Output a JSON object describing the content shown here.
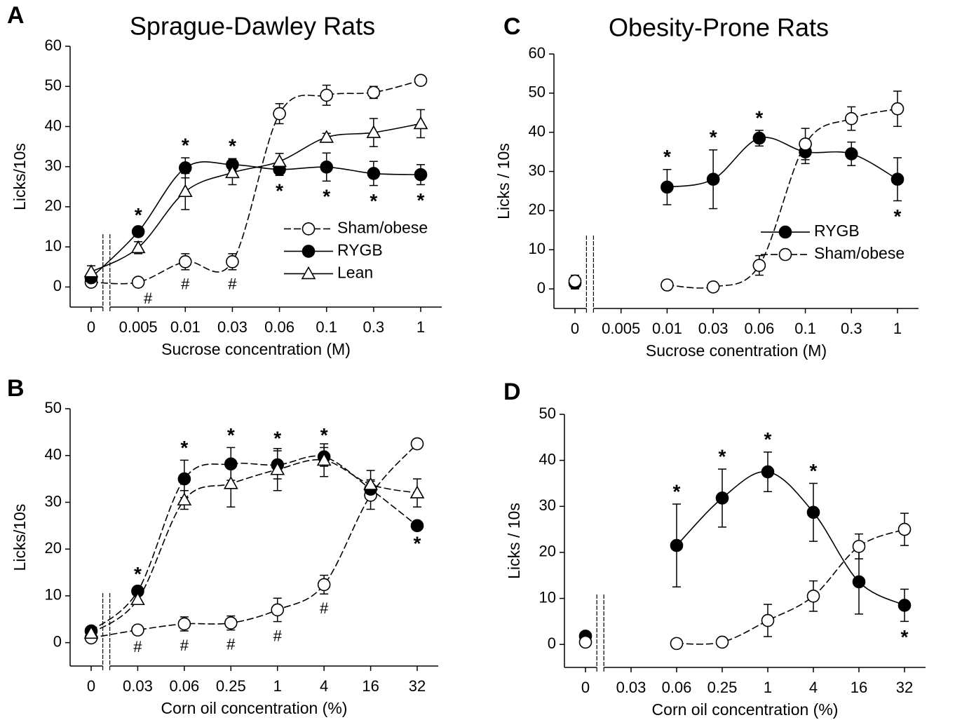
{
  "chart_data": [
    {
      "type": "line",
      "panel": "A",
      "title": "Sprague-Dawley Rats",
      "y_label": "Licks/10s",
      "x_label": "Sucrose concentration (M)",
      "categories": [
        "0",
        "0.005",
        "0.01",
        "0.03",
        "0.06",
        "0.1",
        "0.3",
        "1"
      ],
      "ylim": [
        -5,
        60
      ],
      "yticks": [
        0,
        10,
        20,
        30,
        40,
        50,
        60
      ],
      "legend": "right",
      "series": [
        {
          "name": "Sham/obese",
          "color": "#000000",
          "fill": "#ffffff",
          "marker": "circle",
          "dashed": true,
          "values": [
            1.2,
            1.2,
            6.3,
            6.3,
            43.2,
            47.8,
            48.5,
            51.5
          ],
          "errors": [
            1,
            0.5,
            2,
            2,
            2.5,
            2.5,
            1.5,
            1
          ]
        },
        {
          "name": "RYGB",
          "color": "#000000",
          "fill": "#000000",
          "marker": "circle",
          "dashed": false,
          "values": [
            2.3,
            13.8,
            29.7,
            30.5,
            29.3,
            29.9,
            28.3,
            28
          ],
          "errors": [
            0.5,
            1,
            2.5,
            1.5,
            1.5,
            3.5,
            3,
            2.5
          ]
        },
        {
          "name": "Lean",
          "color": "#000000",
          "fill": "#ffffff",
          "marker": "triangle",
          "dashed": false,
          "values": [
            3.8,
            9.8,
            23.8,
            28.5,
            31.3,
            37.3,
            38.5,
            40.7
          ],
          "errors": [
            1.5,
            1.5,
            4.5,
            3,
            2,
            1,
            3.5,
            3.5
          ]
        }
      ],
      "stars": [
        null,
        "*",
        "*",
        "*",
        "*",
        "*",
        "*",
        "*"
      ],
      "hashes": [
        null,
        "#",
        "#",
        "#",
        null,
        null,
        null,
        null
      ]
    },
    {
      "type": "line",
      "panel": "B",
      "y_label": "Licks/10s",
      "x_label": "Corn oil concentration (%)",
      "categories": [
        "0",
        "0.03",
        "0.06",
        "0.25",
        "1",
        "4",
        "16",
        "32"
      ],
      "ylim": [
        -5,
        50
      ],
      "yticks": [
        0,
        10,
        20,
        30,
        40,
        50
      ],
      "series": [
        {
          "name": "Sham/obese",
          "color": "#000000",
          "fill": "#ffffff",
          "marker": "circle",
          "dashed": true,
          "values": [
            1,
            2.7,
            4,
            4.2,
            7,
            12.4,
            31.5,
            42.5
          ],
          "errors": [
            0.5,
            0.5,
            1.5,
            1.5,
            2.5,
            2,
            3,
            0.5
          ]
        },
        {
          "name": "RYGB",
          "color": "#000000",
          "fill": "#000000",
          "marker": "circle",
          "dashed": true,
          "values": [
            2.5,
            11,
            35,
            38.2,
            38,
            39.7,
            32.8,
            25
          ],
          "errors": [
            0.5,
            1,
            4,
            3.5,
            3,
            2,
            2,
            0.5
          ]
        },
        {
          "name": "Lean",
          "color": "#000000",
          "fill": "#ffffff",
          "marker": "triangle",
          "dashed": true,
          "values": [
            2,
            9.2,
            30.5,
            34,
            37,
            39,
            33.8,
            32
          ],
          "errors": [
            0.5,
            1,
            2,
            5,
            4.5,
            3.5,
            3,
            3
          ]
        }
      ],
      "stars": [
        null,
        "*",
        "*",
        "*",
        "*",
        "*",
        null,
        "*"
      ],
      "hashes": [
        null,
        "#",
        "#",
        "#",
        "#",
        "#",
        null,
        null
      ]
    },
    {
      "type": "line",
      "panel": "C",
      "title": "Obesity-Prone Rats",
      "y_label": "Licks / 10s",
      "x_label": "Sucrose conentration (M)",
      "categories": [
        "0",
        "0.005",
        "0.01",
        "0.03",
        "0.06",
        "0.1",
        "0.3",
        "1"
      ],
      "ylim": [
        -5,
        60
      ],
      "yticks": [
        0,
        10,
        20,
        30,
        40,
        50,
        60
      ],
      "legend": "right",
      "series": [
        {
          "name": "RYGB",
          "color": "#000000",
          "fill": "#000000",
          "marker": "circle",
          "dashed": false,
          "values": [
            1.5,
            null,
            26,
            28,
            38.5,
            35,
            34.5,
            28
          ],
          "errors": [
            1.5,
            null,
            4.5,
            7.5,
            2,
            3,
            3,
            5.5
          ]
        },
        {
          "name": "Sham/obese",
          "color": "#000000",
          "fill": "#ffffff",
          "marker": "circle",
          "dashed": true,
          "values": [
            2,
            null,
            1,
            0.5,
            6,
            37,
            43.5,
            46
          ],
          "errors": [
            1.5,
            null,
            0.5,
            0.5,
            2.5,
            4,
            3,
            4.5
          ]
        }
      ],
      "stars": [
        null,
        null,
        "*",
        "*",
        "*",
        null,
        null,
        "*"
      ]
    },
    {
      "type": "line",
      "panel": "D",
      "y_label": "Licks / 10s",
      "x_label": "Corn oil concentration (%)",
      "categories": [
        "0",
        "0.03",
        "0.06",
        "0.25",
        "1",
        "4",
        "16",
        "32"
      ],
      "ylim": [
        -5,
        50
      ],
      "yticks": [
        0,
        10,
        20,
        30,
        40,
        50
      ],
      "series": [
        {
          "name": "RYGB",
          "color": "#000000",
          "fill": "#000000",
          "marker": "circle",
          "dashed": false,
          "values": [
            1.8,
            null,
            21.5,
            31.8,
            37.5,
            28.7,
            13.6,
            8.5
          ],
          "errors": [
            0.5,
            null,
            9,
            6.3,
            4.3,
            6.3,
            7,
            3.5
          ]
        },
        {
          "name": "Sham/obese",
          "color": "#000000",
          "fill": "#ffffff",
          "marker": "circle",
          "dashed": true,
          "values": [
            0.5,
            null,
            0.2,
            0.5,
            5.2,
            10.5,
            21.3,
            25
          ],
          "errors": [
            0.5,
            null,
            0.5,
            0.5,
            3.5,
            3.3,
            2.7,
            3.5
          ]
        }
      ],
      "stars": [
        null,
        null,
        "*",
        "*",
        "*",
        "*",
        null,
        "*"
      ]
    }
  ]
}
